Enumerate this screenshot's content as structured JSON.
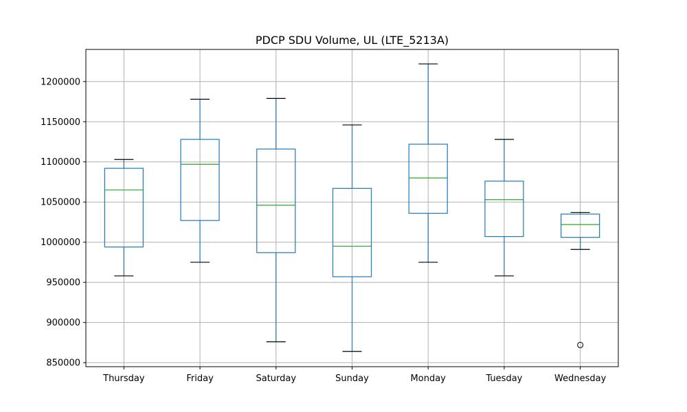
{
  "chart_data": {
    "type": "box",
    "title": "PDCP SDU Volume, UL (LTE_5213A)",
    "xlabel": "",
    "ylabel": "",
    "ylim": [
      845000,
      1240000
    ],
    "yticks": [
      850000,
      900000,
      950000,
      1000000,
      1050000,
      1100000,
      1150000,
      1200000
    ],
    "grid": true,
    "colors": {
      "box": "#1f77b4",
      "median": "#2ca02c",
      "whisker_cap": "#000000",
      "grid": "#b0b0b0"
    },
    "boxes": [
      {
        "category": "Thursday",
        "whisker_low": 958000,
        "q1": 994000,
        "median": 1065000,
        "q3": 1092000,
        "whisker_high": 1103000,
        "outliers": []
      },
      {
        "category": "Friday",
        "whisker_low": 975000,
        "q1": 1027000,
        "median": 1097000,
        "q3": 1128000,
        "whisker_high": 1178000,
        "outliers": []
      },
      {
        "category": "Saturday",
        "whisker_low": 876000,
        "q1": 987000,
        "median": 1046000,
        "q3": 1116000,
        "whisker_high": 1179000,
        "outliers": []
      },
      {
        "category": "Sunday",
        "whisker_low": 864000,
        "q1": 957000,
        "median": 995000,
        "q3": 1067000,
        "whisker_high": 1146000,
        "outliers": []
      },
      {
        "category": "Monday",
        "whisker_low": 975000,
        "q1": 1036000,
        "median": 1080000,
        "q3": 1122000,
        "whisker_high": 1222000,
        "outliers": []
      },
      {
        "category": "Tuesday",
        "whisker_low": 958000,
        "q1": 1007000,
        "median": 1053000,
        "q3": 1076000,
        "whisker_high": 1128000,
        "outliers": []
      },
      {
        "category": "Wednesday",
        "whisker_low": 991000,
        "q1": 1006000,
        "median": 1022000,
        "q3": 1035000,
        "whisker_high": 1037000,
        "outliers": [
          872000
        ]
      }
    ]
  }
}
